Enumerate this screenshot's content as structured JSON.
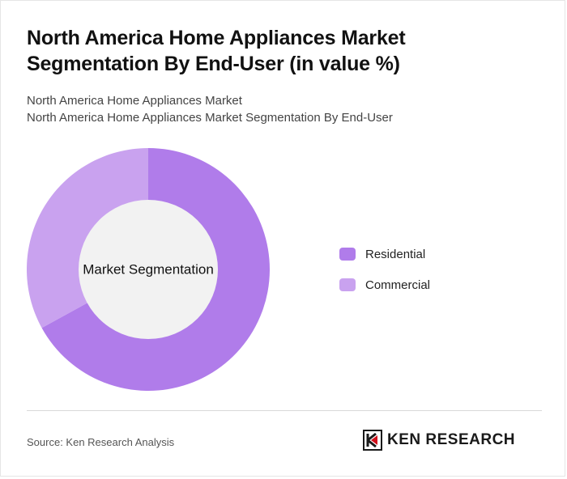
{
  "header": {
    "title": "North America Home Appliances Market Segmentation By End-User (in value %)",
    "subtitle_line1": "North America Home Appliances Market",
    "subtitle_line2": "North America Home Appliances Market Segmentation By End-User"
  },
  "chart_data": {
    "type": "pie",
    "variant": "donut",
    "center_label": "Market Segmentation",
    "categories": [
      "Residential",
      "Commercial"
    ],
    "values": [
      67,
      33
    ],
    "colors": [
      "#b07cea",
      "#c9a2ef"
    ],
    "legend_position": "right"
  },
  "footer": {
    "source": "Source: Ken Research Analysis",
    "logo_text": "KEN RESEARCH",
    "logo_icon": "ken-research-logo-icon"
  }
}
